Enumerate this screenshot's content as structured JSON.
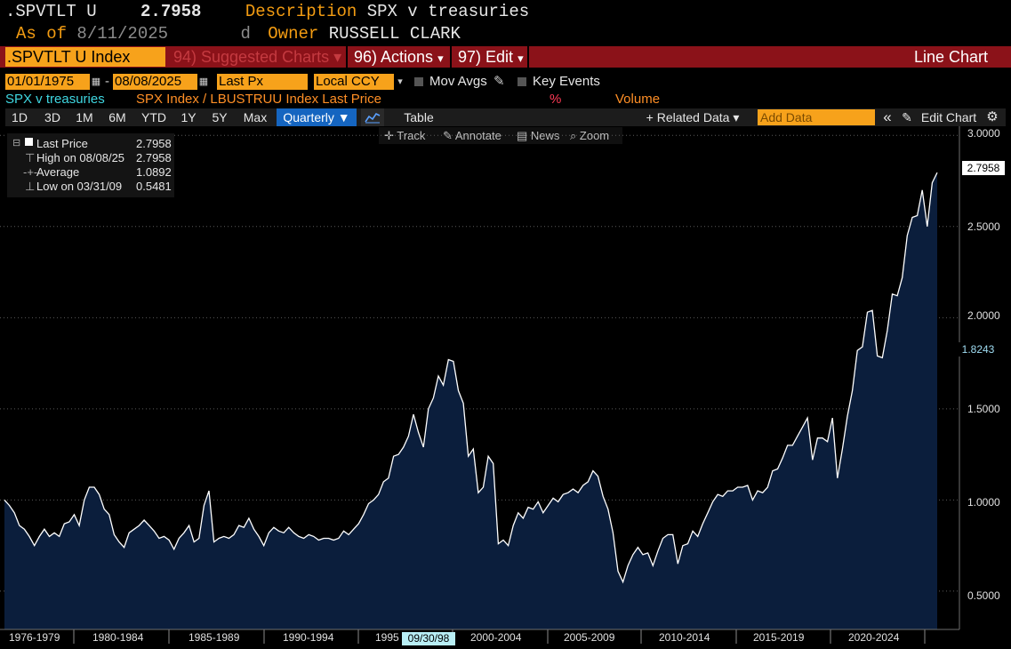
{
  "header": {
    "ticker": ".SPVTLT U",
    "price": "2.7958",
    "desc_label": "Description",
    "desc_value": "SPX v treasuries",
    "asof_label": "As of",
    "asof_value": "8/11/2025",
    "d_label": "d",
    "owner_label": "Owner",
    "owner_value": "RUSSELL CLARK"
  },
  "command_bar": {
    "security": ".SPVTLT U Index",
    "suggested": "94) Suggested Charts",
    "actions": "96) Actions",
    "edit": "97) Edit",
    "chart_type": "Line Chart"
  },
  "params": {
    "start_date": "01/01/1975",
    "dash": "-",
    "end_date": "08/08/2025",
    "field": "Last Px",
    "currency": "Local CCY",
    "mov_avgs": "Mov Avgs",
    "key_events": "Key Events"
  },
  "series_row": {
    "name": "SPX v treasuries",
    "formula": "SPX Index / LBUSTRUU Index Last Price",
    "pct": "%",
    "volume": "Volume"
  },
  "toolbar": {
    "ranges": [
      "1D",
      "3D",
      "1M",
      "6M",
      "YTD",
      "1Y",
      "5Y",
      "Max"
    ],
    "period": "Quarterly ▼",
    "table": "Table",
    "related": "+ Related Data ▾",
    "add_data_placeholder": "Add Data",
    "collapse": "«",
    "edit_chart": "Edit Chart"
  },
  "subtoolbar": {
    "track": "Track",
    "annotate": "Annotate",
    "news": "News",
    "zoom": "Zoom"
  },
  "legend": {
    "last_label": "Last Price",
    "last_value": "2.7958",
    "high_label": "High on 08/08/25",
    "high_value": "2.7958",
    "avg_label": "Average",
    "avg_value": "1.0892",
    "low_label": "Low on 03/31/09",
    "low_value": "0.5481"
  },
  "colors": {
    "accent_orange": "#f7a21b",
    "command_red": "#8b1219",
    "area_fill": "#0b1e3c",
    "line": "#ffffff",
    "series_cyan": "#3fd6e0"
  },
  "chart_data": {
    "type": "area",
    "frequency": "quarterly",
    "x_start": "1975-Q1",
    "x_end": "2025-Q3",
    "values": [
      1.0,
      0.97,
      0.93,
      0.86,
      0.84,
      0.8,
      0.75,
      0.8,
      0.84,
      0.8,
      0.82,
      0.8,
      0.87,
      0.88,
      0.92,
      0.86,
      1.0,
      1.07,
      1.07,
      1.03,
      0.95,
      0.92,
      0.81,
      0.77,
      0.74,
      0.82,
      0.84,
      0.86,
      0.89,
      0.86,
      0.83,
      0.79,
      0.8,
      0.78,
      0.73,
      0.79,
      0.82,
      0.86,
      0.77,
      0.79,
      0.97,
      1.05,
      0.77,
      0.79,
      0.8,
      0.79,
      0.81,
      0.86,
      0.85,
      0.9,
      0.84,
      0.8,
      0.75,
      0.82,
      0.85,
      0.83,
      0.82,
      0.85,
      0.82,
      0.8,
      0.79,
      0.81,
      0.8,
      0.78,
      0.79,
      0.79,
      0.78,
      0.79,
      0.83,
      0.81,
      0.84,
      0.87,
      0.92,
      0.98,
      1.0,
      1.03,
      1.1,
      1.12,
      1.24,
      1.25,
      1.29,
      1.35,
      1.47,
      1.37,
      1.29,
      1.5,
      1.56,
      1.68,
      1.63,
      1.77,
      1.76,
      1.6,
      1.53,
      1.24,
      1.28,
      1.04,
      1.07,
      1.24,
      1.2,
      0.76,
      0.78,
      0.75,
      0.86,
      0.93,
      0.9,
      0.96,
      0.95,
      0.99,
      0.93,
      0.97,
      1.01,
      0.99,
      1.03,
      1.04,
      1.06,
      1.04,
      1.08,
      1.1,
      1.16,
      1.13,
      1.02,
      0.95,
      0.82,
      0.61,
      0.55,
      0.64,
      0.7,
      0.74,
      0.7,
      0.71,
      0.64,
      0.72,
      0.79,
      0.81,
      0.81,
      0.65,
      0.75,
      0.76,
      0.83,
      0.8,
      0.87,
      0.93,
      0.99,
      1.03,
      1.02,
      1.05,
      1.05,
      1.07,
      1.07,
      1.08,
      1.0,
      1.05,
      1.04,
      1.07,
      1.16,
      1.17,
      1.23,
      1.3,
      1.3,
      1.35,
      1.4,
      1.45,
      1.22,
      1.34,
      1.34,
      1.32,
      1.45,
      1.12,
      1.28,
      1.46,
      1.6,
      1.82,
      1.84,
      2.03,
      2.04,
      1.79,
      1.78,
      1.93,
      2.13,
      2.12,
      2.22,
      2.45,
      2.55,
      2.56,
      2.7,
      2.5,
      2.74,
      2.7958
    ],
    "ylim": [
      0.29,
      3.05
    ],
    "y_ticks": [
      "0.5000",
      "1.0000",
      "1.5000",
      "2.0000",
      "2.5000",
      "3.0000"
    ],
    "x_tick_labels": [
      "1976-1979",
      "1980-1984",
      "1985-1989",
      "1990-1994",
      "1995",
      "2000-2004",
      "2005-2009",
      "2010-2014",
      "2015-2019",
      "2020-2024"
    ],
    "last_value_label": "2.7958",
    "crosshair_value": "1.8243",
    "crosshair_date": "09/30/98",
    "grid": true
  }
}
